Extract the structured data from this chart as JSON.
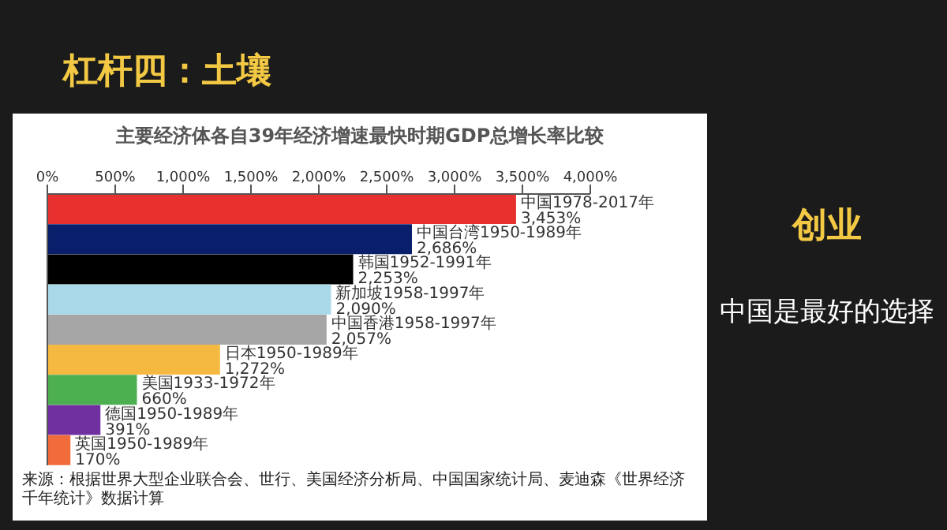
{
  "chart_data": {
    "type": "bar",
    "orientation": "horizontal",
    "title": "主要经济体各自39年经济增速最快时期GDP总增长率比较",
    "categories": [
      "中国1978-2017年",
      "中国台湾1950-1989年",
      "韩国1952-1991年",
      "新加坡1958-1997年",
      "中国香港1958-1997年",
      "日本1950-1989年",
      "美国1933-1972年",
      "德国1950-1989年",
      "英国1950-1989年"
    ],
    "values": [
      3453,
      2686,
      2253,
      2090,
      2057,
      1272,
      660,
      391,
      170
    ],
    "value_labels": [
      "3,453%",
      "2,686%",
      "2,253%",
      "2,090%",
      "2,057%",
      "1,272%",
      "660%",
      "391%",
      "170%"
    ],
    "colors": [
      "#e8302f",
      "#0a1f6b",
      "#000000",
      "#a9d8e8",
      "#a6a6a6",
      "#f5b942",
      "#4caf50",
      "#7030a0",
      "#f26b3a"
    ],
    "xlim": [
      0,
      4000
    ],
    "xticks": [
      {
        "value": 0,
        "label": "0%"
      },
      {
        "value": 500,
        "label": "500%"
      },
      {
        "value": 1000,
        "label": "1,000%"
      },
      {
        "value": 1500,
        "label": "1,500%"
      },
      {
        "value": 2000,
        "label": "2,000%"
      },
      {
        "value": 2500,
        "label": "2,500%"
      },
      {
        "value": 3000,
        "label": "3,000%"
      },
      {
        "value": 3500,
        "label": "3,500%"
      },
      {
        "value": 4000,
        "label": "4,000%"
      }
    ],
    "tick_labels": "x",
    "annotations": [
      "杠杆四：土壤",
      "创业",
      "中国是最好的选择",
      "来源：根据世界大型企业联合会、世行、美国经济分析局、中国国家统计局、麦迪森《世界经济千年统计》数据计算"
    ]
  }
}
